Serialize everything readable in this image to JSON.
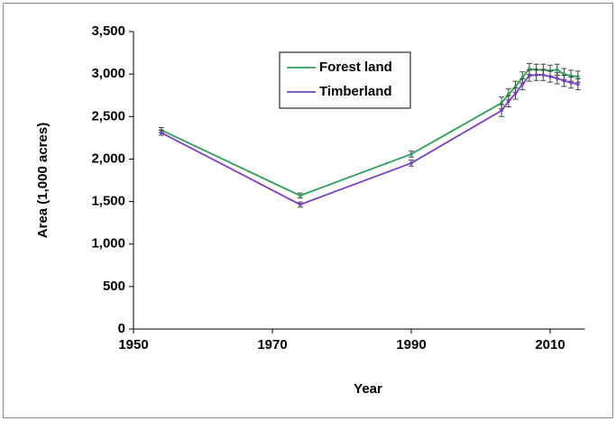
{
  "chart_data": {
    "type": "line",
    "x_label": "Year",
    "y_label": "Area (1,000 acres)",
    "x": [
      1954,
      1974,
      1990,
      2003,
      2004,
      2005,
      2006,
      2007,
      2008,
      2009,
      2010,
      2011,
      2012,
      2013,
      2014
    ],
    "series": [
      {
        "name": "Forest land",
        "color": "#2e9e5a",
        "values": [
          2340,
          1570,
          2058,
          2660,
          2760,
          2850,
          2960,
          3060,
          3050,
          3050,
          3040,
          3050,
          3000,
          2980,
          2970
        ],
        "errors": [
          30,
          30,
          35,
          70,
          65,
          65,
          65,
          65,
          65,
          65,
          65,
          65,
          65,
          65,
          65
        ]
      },
      {
        "name": "Timberland",
        "color": "#7b3fbf",
        "values": [
          2310,
          1464,
          1952,
          2570,
          2680,
          2770,
          2880,
          2980,
          2990,
          2990,
          2970,
          2950,
          2920,
          2900,
          2880
        ],
        "errors": [
          30,
          30,
          35,
          70,
          65,
          65,
          65,
          65,
          65,
          65,
          65,
          65,
          65,
          65,
          65
        ]
      }
    ],
    "xlim": [
      1950,
      2015
    ],
    "xticks": [
      1950,
      1970,
      1990,
      2010
    ],
    "ylim": [
      0,
      3500
    ],
    "yticks": [
      0,
      500,
      {
        "value": 1000,
        "label": "1,000"
      },
      {
        "value": 1500,
        "label": "1,500"
      },
      {
        "value": 2000,
        "label": "2,000"
      },
      {
        "value": 2500,
        "label": "2,500"
      },
      {
        "value": 3000,
        "label": "3,000"
      },
      {
        "value": 3500,
        "label": "3,500"
      }
    ],
    "grid": false,
    "legend": "top"
  }
}
